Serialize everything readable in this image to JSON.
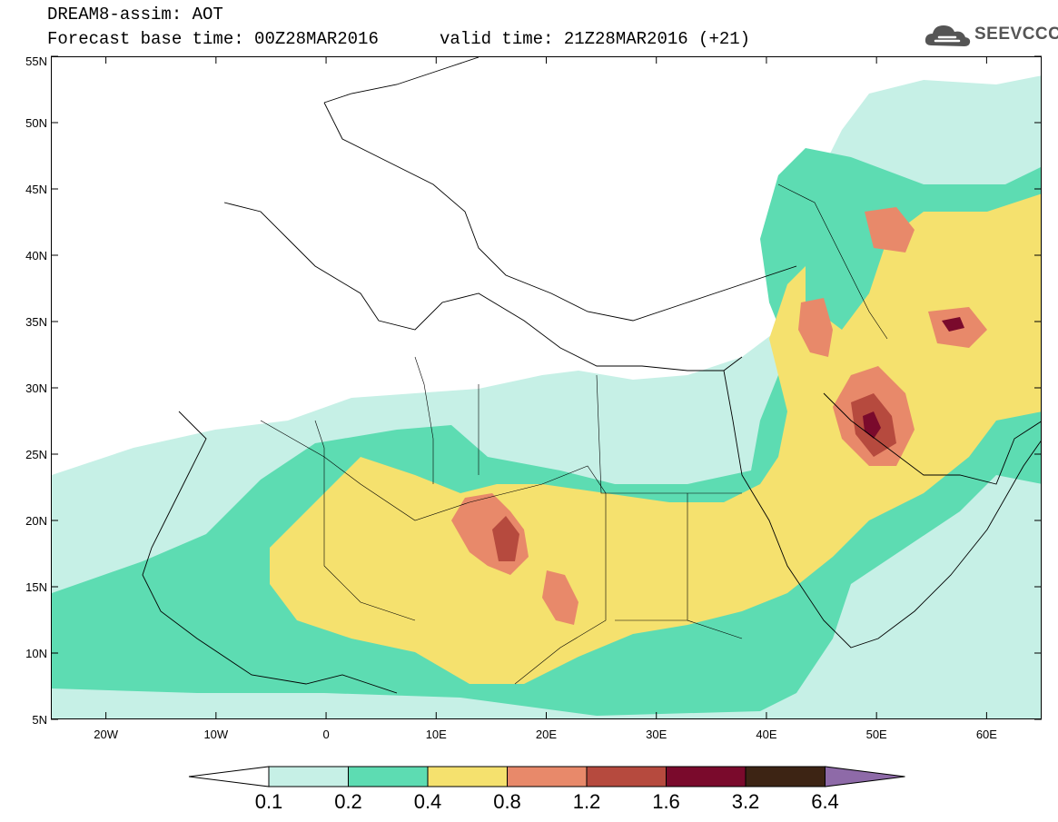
{
  "header": {
    "title": "DREAM8-assim: AOT",
    "base_time": "Forecast base time: 00Z28MAR2016",
    "valid_time": "valid time: 21Z28MAR2016 (+21)"
  },
  "logo": {
    "text": "SEEVCCC",
    "icon": "cloud-icon"
  },
  "map": {
    "lon_range": [
      -25,
      65
    ],
    "lat_range": [
      5,
      55
    ],
    "lat_ticks": [
      {
        "v": 55,
        "label": "55N"
      },
      {
        "v": 50,
        "label": "50N"
      },
      {
        "v": 45,
        "label": "45N"
      },
      {
        "v": 40,
        "label": "40N"
      },
      {
        "v": 35,
        "label": "35N"
      },
      {
        "v": 30,
        "label": "30N"
      },
      {
        "v": 25,
        "label": "25N"
      },
      {
        "v": 20,
        "label": "20N"
      },
      {
        "v": 15,
        "label": "15N"
      },
      {
        "v": 10,
        "label": "10N"
      },
      {
        "v": 5,
        "label": "5N"
      }
    ],
    "lon_ticks": [
      {
        "v": -20,
        "label": "20W"
      },
      {
        "v": -10,
        "label": "10W"
      },
      {
        "v": 0,
        "label": "0"
      },
      {
        "v": 10,
        "label": "10E"
      },
      {
        "v": 20,
        "label": "20E"
      },
      {
        "v": 30,
        "label": "30E"
      },
      {
        "v": 40,
        "label": "40E"
      },
      {
        "v": 50,
        "label": "50E"
      },
      {
        "v": 60,
        "label": "60E"
      }
    ]
  },
  "colorbar": {
    "levels": [
      "0.1",
      "0.2",
      "0.4",
      "0.8",
      "1.2",
      "1.6",
      "3.2",
      "6.4"
    ],
    "colors": [
      "#c6f0e6",
      "#5ddcb2",
      "#f5e16e",
      "#e8896a",
      "#b64a3e",
      "#7a0a2c",
      "#3d2414"
    ],
    "under_color": "#ffffff",
    "over_color": "#8e6aa8"
  }
}
